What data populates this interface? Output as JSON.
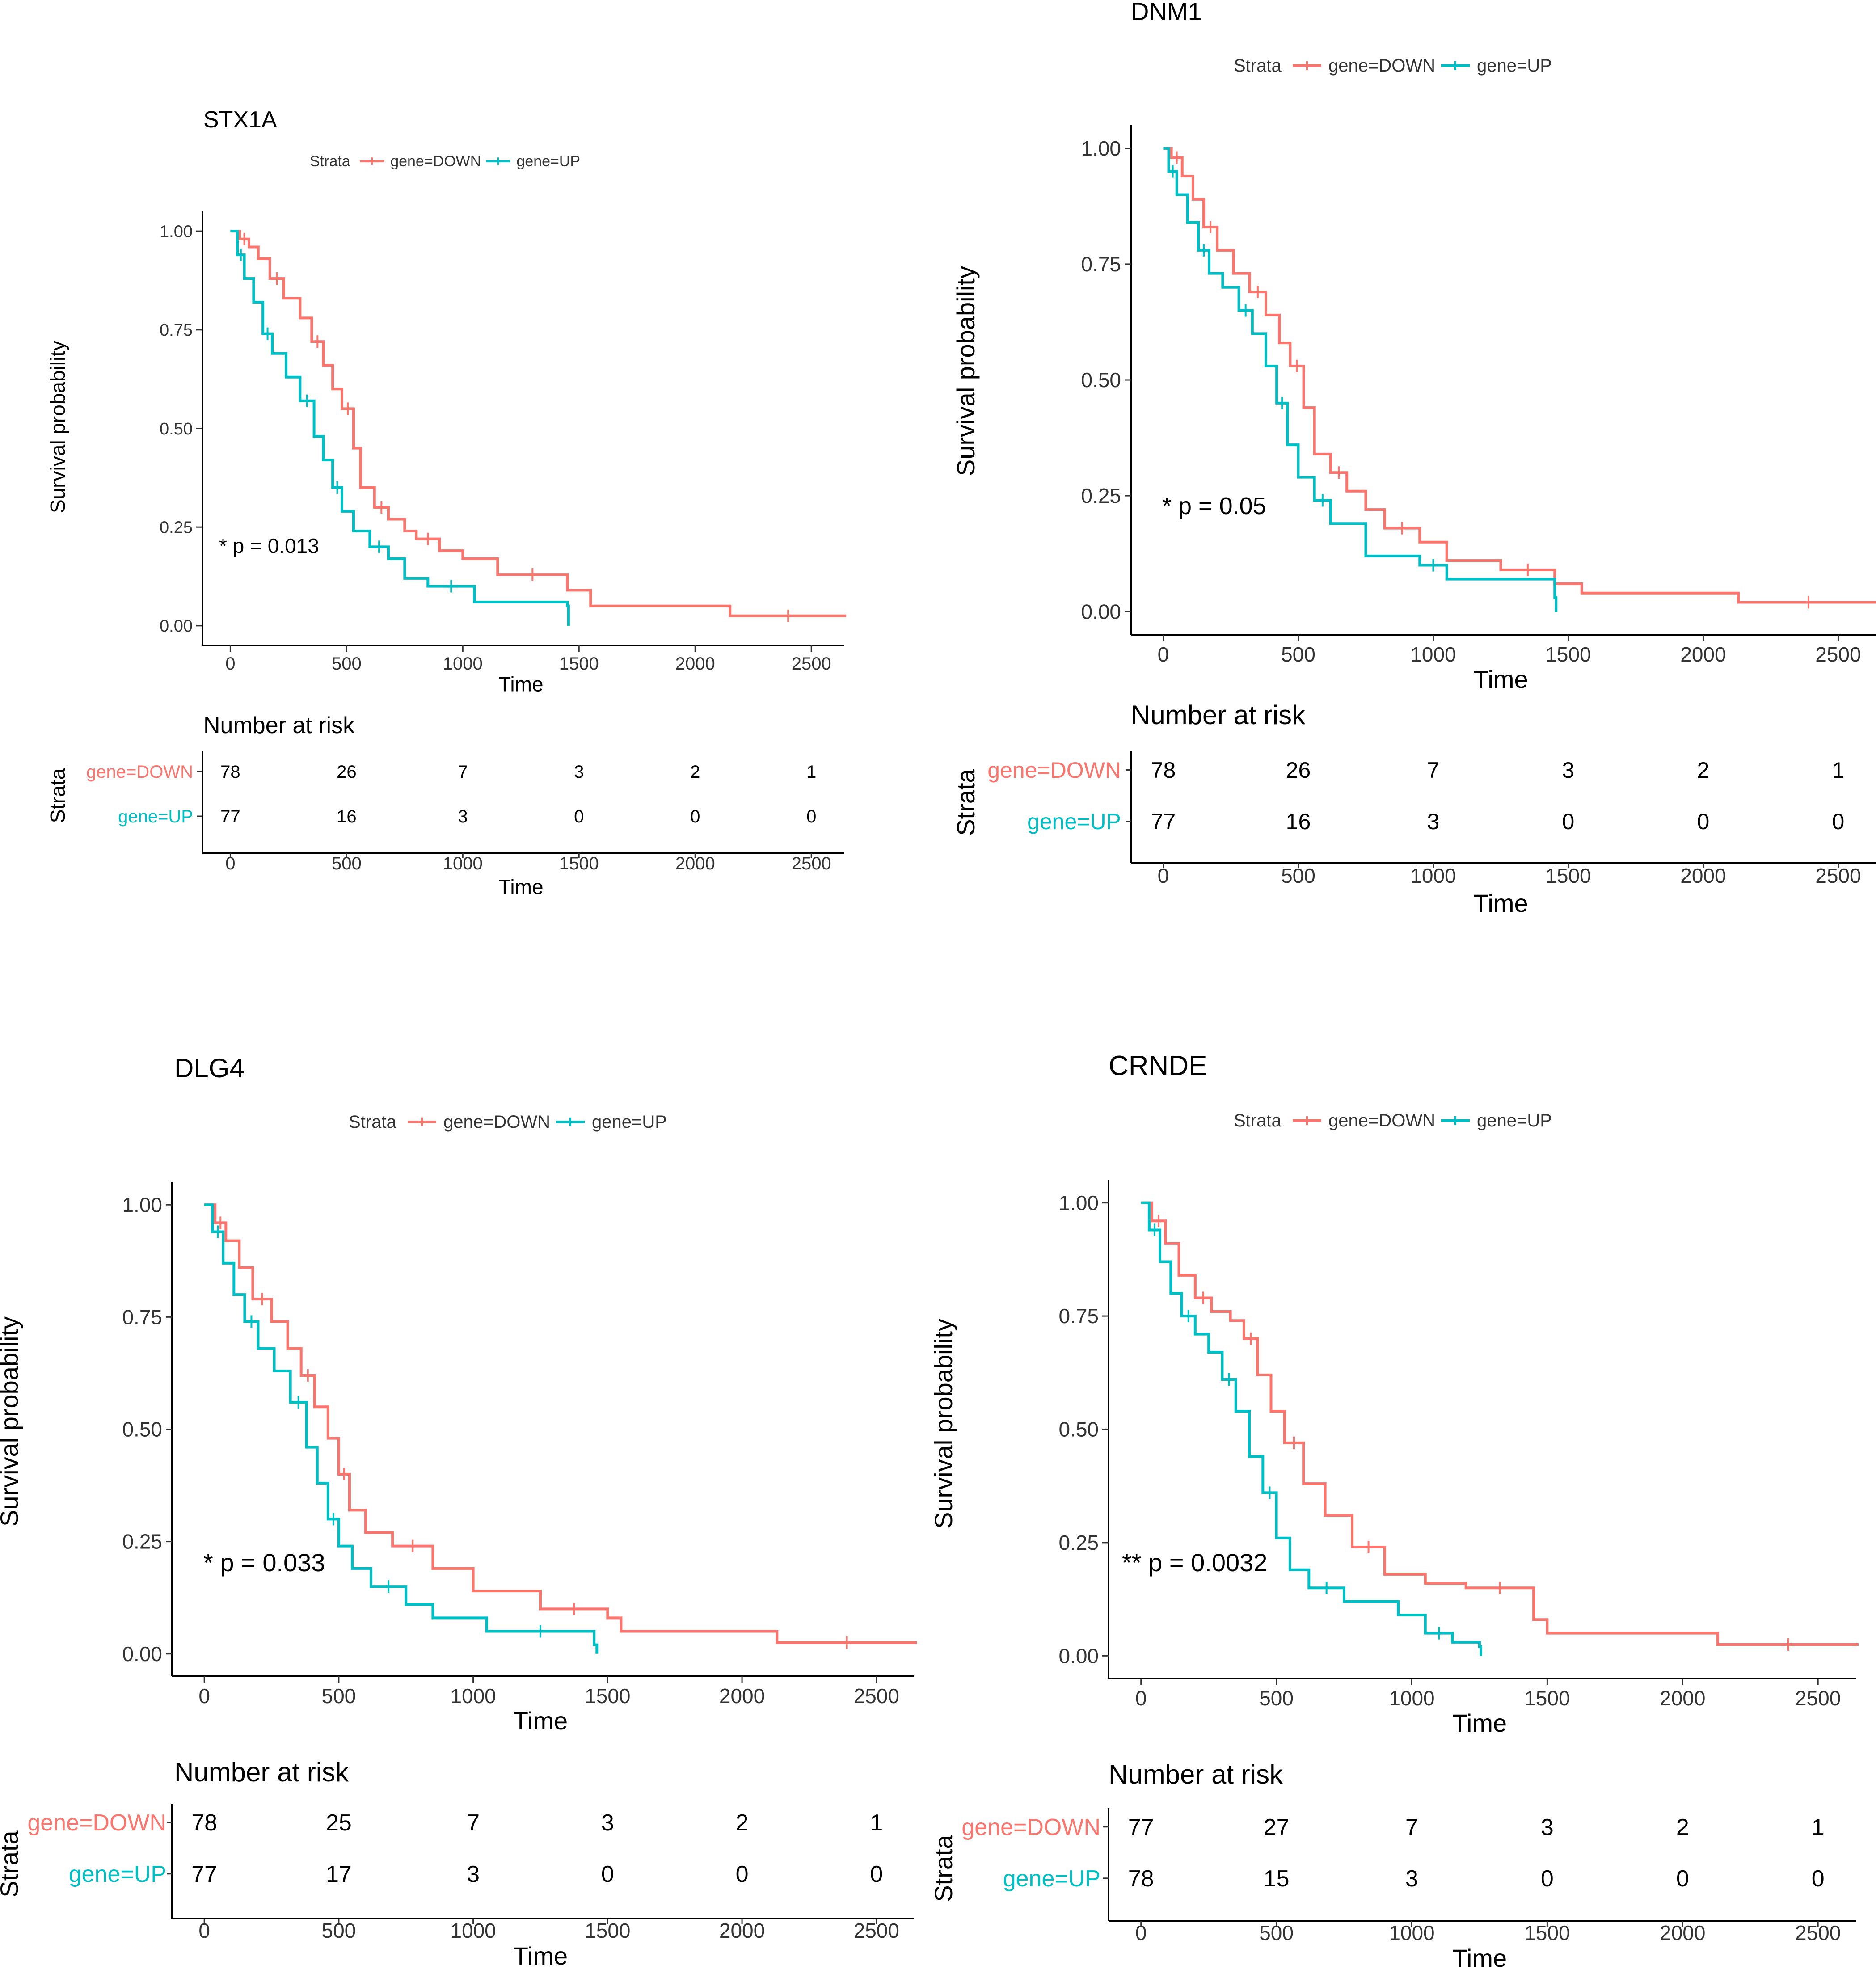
{
  "colors": {
    "down": "#F8766D",
    "up": "#00BFC4",
    "axis": "#000000"
  },
  "chart_data": [
    {
      "type": "line",
      "title": "STX1A",
      "xlabel": "Time",
      "ylabel": "Survival probability",
      "xlim": [
        -120,
        2640
      ],
      "ylim": [
        -0.05,
        1.05
      ],
      "xticks": [
        0,
        500,
        1000,
        1500,
        2000,
        2500
      ],
      "yticks": [
        "0.00",
        "0.25",
        "0.50",
        "0.75",
        "1.00"
      ],
      "legend": {
        "title": "Strata",
        "items": [
          "gene=DOWN",
          "gene=UP"
        ],
        "position": "top"
      },
      "pvalue": "* p = 0.013",
      "series": [
        {
          "name": "gene=DOWN",
          "x": [
            0,
            40,
            80,
            120,
            170,
            230,
            300,
            350,
            400,
            440,
            480,
            530,
            560,
            620,
            680,
            750,
            800,
            900,
            1000,
            1150,
            1450,
            1550,
            2150,
            2650
          ],
          "y": [
            1.0,
            0.98,
            0.96,
            0.93,
            0.88,
            0.83,
            0.78,
            0.72,
            0.66,
            0.6,
            0.55,
            0.45,
            0.35,
            0.3,
            0.27,
            0.24,
            0.22,
            0.19,
            0.17,
            0.13,
            0.09,
            0.05,
            0.025,
            0.025
          ]
        },
        {
          "name": "gene=UP",
          "x": [
            0,
            30,
            60,
            100,
            140,
            180,
            240,
            300,
            360,
            400,
            440,
            480,
            530,
            600,
            680,
            750,
            850,
            1050,
            1450,
            1455
          ],
          "y": [
            1.0,
            0.94,
            0.88,
            0.82,
            0.74,
            0.69,
            0.63,
            0.57,
            0.48,
            0.42,
            0.35,
            0.29,
            0.24,
            0.2,
            0.17,
            0.12,
            0.1,
            0.06,
            0.05,
            0.0
          ]
        }
      ],
      "risk_table": {
        "title": "Number at risk",
        "strata_label": "Strata",
        "xlabel": "Time",
        "rows": [
          {
            "name": "gene=DOWN",
            "values": [
              "78",
              "26",
              "7",
              "3",
              "2",
              "1"
            ]
          },
          {
            "name": "gene=UP",
            "values": [
              "77",
              "16",
              "3",
              "0",
              "0",
              "0"
            ]
          }
        ]
      }
    },
    {
      "type": "line",
      "title": "DNM1",
      "xlabel": "Time",
      "ylabel": "Survival probability",
      "xlim": [
        -120,
        2640
      ],
      "ylim": [
        -0.05,
        1.05
      ],
      "xticks": [
        0,
        500,
        1000,
        1500,
        2000,
        2500
      ],
      "yticks": [
        "0.00",
        "0.25",
        "0.50",
        "0.75",
        "1.00"
      ],
      "legend": {
        "title": "Strata",
        "items": [
          "gene=DOWN",
          "gene=UP"
        ],
        "position": "top"
      },
      "pvalue": "* p = 0.05",
      "series": [
        {
          "name": "gene=DOWN",
          "x": [
            0,
            30,
            70,
            110,
            150,
            200,
            260,
            320,
            380,
            430,
            470,
            520,
            560,
            620,
            680,
            750,
            820,
            950,
            1050,
            1250,
            1450,
            1550,
            2130,
            2650
          ],
          "y": [
            1.0,
            0.98,
            0.94,
            0.89,
            0.83,
            0.78,
            0.73,
            0.69,
            0.64,
            0.58,
            0.53,
            0.44,
            0.34,
            0.3,
            0.26,
            0.22,
            0.18,
            0.15,
            0.11,
            0.09,
            0.06,
            0.04,
            0.02,
            0.02
          ]
        },
        {
          "name": "gene=UP",
          "x": [
            0,
            20,
            50,
            90,
            130,
            170,
            220,
            280,
            330,
            380,
            420,
            460,
            500,
            560,
            620,
            750,
            950,
            1050,
            1450,
            1455
          ],
          "y": [
            1.0,
            0.95,
            0.9,
            0.84,
            0.78,
            0.73,
            0.7,
            0.65,
            0.6,
            0.53,
            0.45,
            0.36,
            0.29,
            0.24,
            0.19,
            0.12,
            0.1,
            0.07,
            0.03,
            0.0
          ]
        }
      ],
      "risk_table": {
        "title": "Number at risk",
        "strata_label": "Strata",
        "xlabel": "Time",
        "rows": [
          {
            "name": "gene=DOWN",
            "values": [
              "78",
              "26",
              "7",
              "3",
              "2",
              "1"
            ]
          },
          {
            "name": "gene=UP",
            "values": [
              "77",
              "16",
              "3",
              "0",
              "0",
              "0"
            ]
          }
        ]
      }
    },
    {
      "type": "line",
      "title": "DLG4",
      "xlabel": "Time",
      "ylabel": "Survival probability",
      "xlim": [
        -120,
        2640
      ],
      "ylim": [
        -0.05,
        1.05
      ],
      "xticks": [
        0,
        500,
        1000,
        1500,
        2000,
        2500
      ],
      "yticks": [
        "0.00",
        "0.25",
        "0.50",
        "0.75",
        "1.00"
      ],
      "legend": {
        "title": "Strata",
        "items": [
          "gene=DOWN",
          "gene=UP"
        ],
        "position": "top"
      },
      "pvalue": "* p = 0.033",
      "series": [
        {
          "name": "gene=DOWN",
          "x": [
            0,
            40,
            80,
            130,
            180,
            250,
            310,
            360,
            410,
            460,
            500,
            540,
            600,
            700,
            850,
            1000,
            1250,
            1500,
            1550,
            2130,
            2650
          ],
          "y": [
            1.0,
            0.96,
            0.92,
            0.86,
            0.79,
            0.74,
            0.68,
            0.62,
            0.55,
            0.48,
            0.4,
            0.32,
            0.27,
            0.24,
            0.19,
            0.14,
            0.1,
            0.08,
            0.05,
            0.025,
            0.025
          ]
        },
        {
          "name": "gene=UP",
          "x": [
            0,
            30,
            70,
            110,
            150,
            200,
            260,
            320,
            380,
            420,
            460,
            500,
            550,
            620,
            750,
            850,
            1050,
            1450,
            1460
          ],
          "y": [
            1.0,
            0.94,
            0.87,
            0.8,
            0.74,
            0.68,
            0.63,
            0.56,
            0.46,
            0.38,
            0.3,
            0.24,
            0.19,
            0.15,
            0.11,
            0.08,
            0.05,
            0.02,
            0.0
          ]
        }
      ],
      "risk_table": {
        "title": "Number at risk",
        "strata_label": "Strata",
        "xlabel": "Time",
        "rows": [
          {
            "name": "gene=DOWN",
            "values": [
              "78",
              "25",
              "7",
              "3",
              "2",
              "1"
            ]
          },
          {
            "name": "gene=UP",
            "values": [
              "77",
              "17",
              "3",
              "0",
              "0",
              "0"
            ]
          }
        ]
      }
    },
    {
      "type": "line",
      "title": "CRNDE",
      "xlabel": "Time",
      "ylabel": "Survival probability",
      "xlim": [
        -120,
        2640
      ],
      "ylim": [
        -0.05,
        1.05
      ],
      "xticks": [
        0,
        500,
        1000,
        1500,
        2000,
        2500
      ],
      "yticks": [
        "0.00",
        "0.25",
        "0.50",
        "0.75",
        "1.00"
      ],
      "legend": {
        "title": "Strata",
        "items": [
          "gene=DOWN",
          "gene=UP"
        ],
        "position": "top"
      },
      "pvalue": "** p = 0.0032",
      "series": [
        {
          "name": "gene=DOWN",
          "x": [
            0,
            40,
            90,
            140,
            200,
            260,
            330,
            380,
            430,
            480,
            530,
            600,
            680,
            780,
            900,
            1050,
            1200,
            1450,
            1500,
            2130,
            2650
          ],
          "y": [
            1.0,
            0.96,
            0.91,
            0.84,
            0.79,
            0.76,
            0.74,
            0.7,
            0.62,
            0.54,
            0.47,
            0.38,
            0.31,
            0.24,
            0.18,
            0.16,
            0.15,
            0.08,
            0.05,
            0.025,
            0.025
          ]
        },
        {
          "name": "gene=UP",
          "x": [
            0,
            30,
            70,
            110,
            150,
            200,
            250,
            300,
            350,
            400,
            450,
            500,
            550,
            620,
            750,
            950,
            1050,
            1150,
            1250,
            1255
          ],
          "y": [
            1.0,
            0.94,
            0.87,
            0.8,
            0.75,
            0.71,
            0.67,
            0.61,
            0.54,
            0.44,
            0.36,
            0.26,
            0.19,
            0.15,
            0.12,
            0.09,
            0.05,
            0.03,
            0.02,
            0.0
          ]
        }
      ],
      "risk_table": {
        "title": "Number at risk",
        "strata_label": "Strata",
        "xlabel": "Time",
        "rows": [
          {
            "name": "gene=DOWN",
            "values": [
              "77",
              "27",
              "7",
              "3",
              "2",
              "1"
            ]
          },
          {
            "name": "gene=UP",
            "values": [
              "78",
              "15",
              "3",
              "0",
              "0",
              "0"
            ]
          }
        ]
      }
    }
  ]
}
